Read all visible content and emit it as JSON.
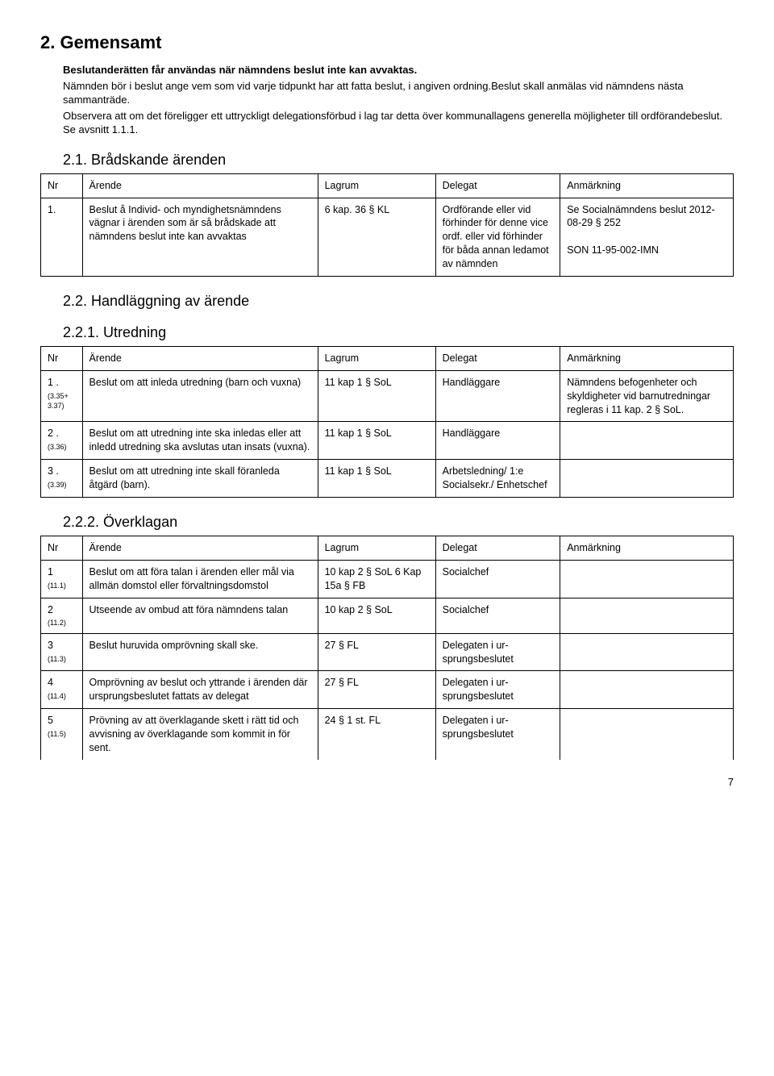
{
  "section_title": "2. Gemensamt",
  "intro_bold": "Beslutanderätten får användas när nämndens beslut inte kan avvaktas.",
  "intro_p1": "Nämnden bör i beslut ange vem som vid varje tidpunkt har att fatta beslut, i angiven ordning.Beslut skall anmälas vid nämndens nästa sammanträde.",
  "intro_p2": "Observera att om det föreligger ett uttryckligt delegationsförbud i lag tar detta över kommunallagens generella möjligheter till ordförandebeslut. Se avsnitt 1.1.1.",
  "headings": {
    "h21": "2.1. Brådskande ärenden",
    "h22": "2.2. Handläggning av ärende",
    "h221": "2.2.1. Utredning",
    "h222": "2.2.2. Överklagan"
  },
  "table_headers": {
    "nr": "Nr",
    "arende": "Ärende",
    "lagrum": "Lagrum",
    "delegat": "Delegat",
    "anm": "Anmärkning"
  },
  "t21": [
    {
      "nr": "1.",
      "arende": "Beslut å Individ- och myndighets­nämndens vägnar i ärenden som är så brådskade att nämndens beslut inte kan avvaktas",
      "lagrum": "6 kap. 36 § KL",
      "delegat": "Ordförande eller vid förhinder för denne vice ordf. eller vid förhinder för båda annan ledamot av nämnden",
      "anm_line1": "Se Socialnämndens beslut 2012-08-29 § 252",
      "anm_line2": "SON 11-95-002-IMN"
    }
  ],
  "t221": [
    {
      "nr": "1 .",
      "nr_sub": "(3.35+ 3.37)",
      "arende": "Beslut om att inleda utredning (barn och vuxna)",
      "lagrum": "11 kap 1 § SoL",
      "delegat": "Handläggare",
      "anm": "Nämndens befogenheter och skyldigheter vid barnutredningar regleras i 11 kap. 2 § SoL."
    },
    {
      "nr": "2 .",
      "nr_sub": "(3.36)",
      "arende": "Beslut om att utredning inte ska inledas eller att inledd utredning ska avslutas utan insats (vuxna).",
      "lagrum": "11 kap 1 § SoL",
      "delegat": "Handläggare",
      "anm": ""
    },
    {
      "nr": "3 .",
      "nr_sub": "(3.39)",
      "arende": "Beslut om att utredning inte skall föranleda åtgärd (barn).",
      "lagrum": "11 kap 1 § SoL",
      "delegat": "Arbetsledning/ 1:e Socialsekr./ Enhetschef",
      "anm": ""
    }
  ],
  "t222": [
    {
      "nr": "1",
      "nr_sub": "(11.1)",
      "arende": "Beslut om att föra talan i ärenden eller mål via allmän domstol eller förvaltningsdomstol",
      "lagrum": "10 kap 2 § SoL 6 Kap 15a § FB",
      "delegat": "Socialchef",
      "anm": ""
    },
    {
      "nr": "2",
      "nr_sub": "(11.2)",
      "arende": "Utseende av ombud att föra nämndens talan",
      "lagrum": "10 kap 2 § SoL",
      "delegat": "Socialchef",
      "anm": ""
    },
    {
      "nr": "3",
      "nr_sub": "(11.3)",
      "arende": "Beslut huruvida omprövning skall ske.",
      "lagrum": "27 § FL",
      "delegat": "Delegaten i ur­sprungsbeslutet",
      "anm": ""
    },
    {
      "nr": "4",
      "nr_sub": "(11.4)",
      "arende": "Omprövning av beslut och yttrande i ärenden där ursprungs­beslutet fattats av delegat",
      "lagrum": "27 § FL",
      "delegat": "Delegaten i ur­sprungsbeslutet",
      "anm": ""
    },
    {
      "nr": "5",
      "nr_sub": "(11.5)",
      "arende": "Prövning av att överklagande skett i rätt tid och avvisning av överklagande som kommit in för sent.",
      "lagrum": "24 § 1 st. FL",
      "delegat": "Delegaten i ur­sprungsbeslutet",
      "anm": ""
    }
  ],
  "page_number": "7"
}
